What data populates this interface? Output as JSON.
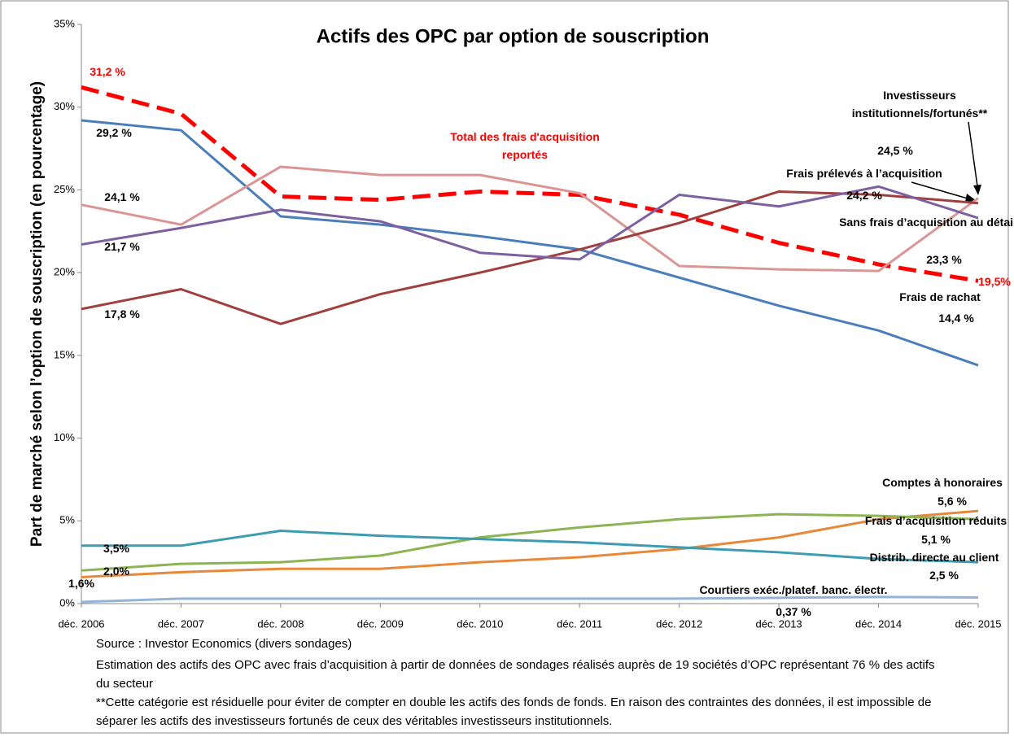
{
  "chart_data": {
    "type": "line",
    "title": "Actifs des OPC par option de souscription",
    "ylabel": "Part de marché selon l’option de souscription (en pourcentage)",
    "categories": [
      "déc. 2006",
      "déc. 2007",
      "déc. 2008",
      "déc. 2009",
      "déc. 2010",
      "déc. 2011",
      "déc. 2012",
      "déc. 2013",
      "déc. 2014",
      "déc. 2015"
    ],
    "ylim": [
      0,
      35
    ],
    "yticks": [
      {
        "value": 0,
        "label": "0%"
      },
      {
        "value": 5,
        "label": "5%"
      },
      {
        "value": 10,
        "label": "10%"
      },
      {
        "value": 15,
        "label": "15%"
      },
      {
        "value": 20,
        "label": "20%"
      },
      {
        "value": 25,
        "label": "25%"
      },
      {
        "value": 30,
        "label": "30%"
      },
      {
        "value": 35,
        "label": "35%"
      }
    ],
    "series": [
      {
        "name": "Frais de rachat",
        "color": "#4a7ebb",
        "values": [
          29.2,
          28.6,
          23.4,
          22.9,
          22.2,
          21.4,
          19.7,
          18.0,
          16.5,
          14.4
        ],
        "value_labels": [
          "29,2 %",
          null,
          null,
          null,
          null,
          null,
          null,
          null,
          null,
          "14,4 %"
        ]
      },
      {
        "name": "Total des frais d'acquisition reportés",
        "color": "#ff0000",
        "dashed": true,
        "values": [
          31.2,
          29.6,
          24.6,
          24.4,
          24.9,
          24.7,
          23.5,
          21.8,
          20.5,
          19.5
        ],
        "value_labels": [
          "31,2 %",
          null,
          null,
          null,
          null,
          null,
          null,
          null,
          null,
          "19,5%"
        ]
      },
      {
        "name": "Investisseurs institutionnels/fortunés**",
        "color": "#d99694",
        "values": [
          24.1,
          22.9,
          26.4,
          25.9,
          25.9,
          24.8,
          20.4,
          20.2,
          20.1,
          24.5
        ],
        "value_labels": [
          "24,1 %",
          null,
          null,
          null,
          null,
          null,
          null,
          null,
          null,
          "24,5 %"
        ]
      },
      {
        "name": "Frais prélevés à l’acquisition",
        "color": "#a0403e",
        "values": [
          17.8,
          19.0,
          16.9,
          18.7,
          20.0,
          21.4,
          23.0,
          24.9,
          24.7,
          24.2
        ],
        "value_labels": [
          "17,8 %",
          null,
          null,
          null,
          null,
          null,
          null,
          null,
          null,
          "24,2 %"
        ]
      },
      {
        "name": "Sans frais d’acquisition au détail",
        "color": "#7d60a0",
        "values": [
          21.7,
          22.7,
          23.8,
          23.1,
          21.2,
          20.8,
          24.7,
          24.0,
          25.2,
          23.3
        ],
        "value_labels": [
          "21,7 %",
          null,
          null,
          null,
          null,
          null,
          null,
          null,
          null,
          "23,3 %"
        ]
      },
      {
        "name": "Comptes à honoraires",
        "color": "#e8883a",
        "values": [
          1.6,
          1.9,
          2.1,
          2.1,
          2.5,
          2.8,
          3.3,
          4.0,
          5.1,
          5.6
        ],
        "value_labels": [
          "1,6%",
          null,
          null,
          null,
          null,
          null,
          null,
          null,
          null,
          "5,6 %"
        ]
      },
      {
        "name": "Frais d’acquisition réduits",
        "color": "#8cb453",
        "values": [
          2.0,
          2.4,
          2.5,
          2.9,
          4.0,
          4.6,
          5.1,
          5.4,
          5.3,
          5.1
        ],
        "value_labels": [
          "2,0%",
          null,
          null,
          null,
          null,
          null,
          null,
          null,
          null,
          "5,1 %"
        ]
      },
      {
        "name": "Distrib. directe au client",
        "color": "#3c9cb0",
        "values": [
          3.5,
          3.5,
          4.4,
          4.1,
          3.9,
          3.7,
          3.4,
          3.1,
          2.7,
          2.5
        ],
        "value_labels": [
          "3,5%",
          null,
          null,
          null,
          null,
          null,
          null,
          null,
          null,
          "2,5 %"
        ]
      },
      {
        "name": "Courtiers exéc./platef. banc. électr.",
        "color": "#95b3d7",
        "values": [
          0.1,
          0.3,
          0.3,
          0.3,
          0.3,
          0.3,
          0.3,
          0.35,
          0.4,
          0.37
        ],
        "value_labels": [
          null,
          null,
          null,
          null,
          null,
          null,
          null,
          null,
          null,
          "0,37 %"
        ]
      }
    ],
    "notes": [
      "Source : Investor Economics (divers sondages)",
      "Estimation des actifs des OPC avec frais d’acquisition à partir de données de sondages réalisés auprès de 19 sociétés d’OPC représentant 76 % des actifs du secteur",
      "**Cette catégorie est résiduelle pour éviter de compter en double les actifs des fonds de fonds. En raison des contraintes des données, il est impossible de séparer les actifs des investisseurs fortunés de ceux des véritables investisseurs institutionnels."
    ]
  }
}
